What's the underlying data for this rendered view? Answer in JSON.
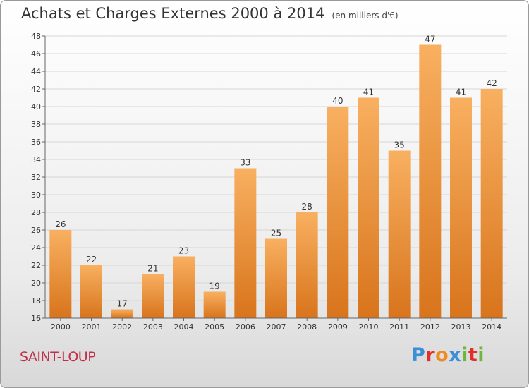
{
  "header": {
    "title": "Achats et Charges Externes 2000 à 2014",
    "unit": "(en milliers d'€)"
  },
  "place": "SAINT-LOUP",
  "logo": {
    "text": "Proxiti",
    "letters": [
      "P",
      "r",
      "o",
      "x",
      "i",
      "t",
      "i"
    ],
    "colors": [
      "#3a8fd6",
      "#e0302a",
      "#f08a1c",
      "#3a8fd6",
      "#6cb83a",
      "#e0302a",
      "#6cb83a"
    ]
  },
  "colors": {
    "bar_light": "#f8b060",
    "bar_dark": "#d8741c",
    "grid": "#d6d6d6"
  },
  "chart_data": {
    "type": "bar",
    "categories": [
      "2000",
      "2001",
      "2002",
      "2003",
      "2004",
      "2005",
      "2006",
      "2007",
      "2008",
      "2009",
      "2010",
      "2011",
      "2012",
      "2013",
      "2014"
    ],
    "values": [
      26,
      22,
      17,
      21,
      23,
      19,
      33,
      25,
      28,
      40,
      41,
      35,
      47,
      41,
      42
    ],
    "ylim": [
      16,
      48
    ],
    "yticks": [
      16,
      18,
      20,
      22,
      24,
      26,
      28,
      30,
      32,
      34,
      36,
      38,
      40,
      42,
      44,
      46,
      48
    ],
    "grid": true,
    "title": "Achats et Charges Externes 2000 à 2014",
    "xlabel": "",
    "ylabel": ""
  }
}
